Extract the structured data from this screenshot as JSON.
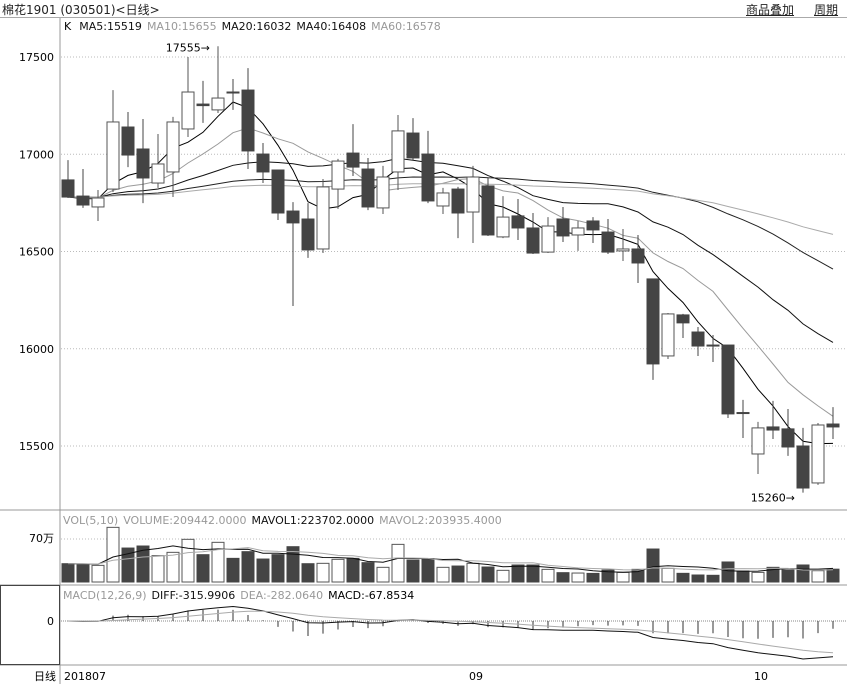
{
  "header": {
    "title": "棉花1901 (030501)<日线>",
    "menu_overlay": "商品叠加",
    "menu_period": "周期"
  },
  "chart_data": {
    "type": "candlestick",
    "price_panel": {
      "legend": [
        "K",
        "MA5:15519",
        "MA10:15655",
        "MA20:16032",
        "MA40:16408",
        "MA60:16578"
      ],
      "ma_periods": [
        5,
        10,
        20,
        40,
        60
      ],
      "ma_colors": [
        "#000000",
        "#9a9a9a",
        "#111111",
        "#222222",
        "#aaaaaa"
      ],
      "ytick_labels": [
        "17500",
        "17000",
        "16500",
        "16000",
        "15500"
      ],
      "yticks": [
        17500,
        17000,
        16500,
        16000,
        15500
      ],
      "ylim": [
        15100,
        17700
      ],
      "grid": true,
      "annotations": [
        {
          "text": "17555",
          "value": 17555,
          "candle": 11
        },
        {
          "text": "15260",
          "value": 15260,
          "candle": 50
        }
      ],
      "candles_ohlc": [
        [
          16868,
          16970,
          16775,
          16780
        ],
        [
          16785,
          16924,
          16724,
          16739
        ],
        [
          16729,
          16816,
          16657,
          16775
        ],
        [
          16821,
          17330,
          16806,
          17166
        ],
        [
          17140,
          17217,
          16934,
          16996
        ],
        [
          17027,
          17181,
          16749,
          16878
        ],
        [
          16852,
          17104,
          16827,
          16950
        ],
        [
          16909,
          17192,
          16780,
          17166
        ],
        [
          17130,
          17500,
          17089,
          17320
        ],
        [
          17258,
          17377,
          17161,
          17250
        ],
        [
          17228,
          17555,
          17212,
          17289
        ],
        [
          17320,
          17387,
          17228,
          17318
        ],
        [
          17330,
          17443,
          16924,
          17017
        ],
        [
          17001,
          17058,
          16852,
          16909
        ],
        [
          16919,
          16919,
          16662,
          16698
        ],
        [
          16708,
          16754,
          16220,
          16647
        ],
        [
          16667,
          16749,
          16467,
          16508
        ],
        [
          16513,
          16873,
          16492,
          16832
        ],
        [
          16821,
          16976,
          16719,
          16965
        ],
        [
          17006,
          17155,
          16888,
          16934
        ],
        [
          16924,
          16981,
          16713,
          16729
        ],
        [
          16724,
          16940,
          16693,
          16883
        ],
        [
          16909,
          17202,
          16816,
          17120
        ],
        [
          17109,
          17186,
          16970,
          16981
        ],
        [
          17001,
          17120,
          16749,
          16760
        ],
        [
          16734,
          16827,
          16693,
          16801
        ],
        [
          16821,
          16832,
          16569,
          16698
        ],
        [
          16703,
          16940,
          16544,
          16883
        ],
        [
          16837,
          16878,
          16580,
          16585
        ],
        [
          16575,
          16785,
          16569,
          16677
        ],
        [
          16683,
          16770,
          16559,
          16621
        ],
        [
          16621,
          16698,
          16487,
          16492
        ],
        [
          16497,
          16677,
          16492,
          16631
        ],
        [
          16667,
          16729,
          16549,
          16580
        ],
        [
          16585,
          16657,
          16503,
          16621
        ],
        [
          16657,
          16677,
          16544,
          16611
        ],
        [
          16600,
          16667,
          16487,
          16497
        ],
        [
          16503,
          16616,
          16451,
          16513
        ],
        [
          16513,
          16585,
          16338,
          16441
        ],
        [
          16359,
          16359,
          15840,
          15922
        ],
        [
          15963,
          16184,
          15947,
          16179
        ],
        [
          16174,
          16179,
          16055,
          16133
        ],
        [
          16086,
          16112,
          15963,
          16014
        ],
        [
          16019,
          16071,
          15932,
          16019
        ],
        [
          16019,
          16019,
          15644,
          15665
        ],
        [
          15672,
          15737,
          15541,
          15667
        ],
        [
          15459,
          15624,
          15356,
          15593
        ],
        [
          15598,
          15732,
          15536,
          15582
        ],
        [
          15588,
          15690,
          15449,
          15495
        ],
        [
          15500,
          15593,
          15260,
          15284
        ],
        [
          15310,
          15618,
          15300,
          15608
        ],
        [
          15613,
          15700,
          15536,
          15598
        ]
      ]
    },
    "volume_panel": {
      "legend": [
        "VOL(5,10)",
        "VOLUME:209442.0000",
        "MAVOL1:223702.0000",
        "MAVOL2:203935.4000"
      ],
      "ytick_label": "70万",
      "ytick": 70,
      "unit": "万",
      "values": [
        29.8,
        28.2,
        27.1,
        89,
        55.3,
        58.6,
        42.9,
        48.3,
        69.5,
        44.5,
        64.6,
        38.5,
        49.4,
        37.4,
        44.5,
        57.5,
        29.8,
        30.4,
        36.9,
        38.5,
        31.5,
        23.9,
        61.3,
        35.8,
        38,
        23.9,
        26,
        30.4,
        24.4,
        19,
        27.7,
        27.7,
        20.6,
        15.2,
        14.6,
        14,
        19.5,
        15.7,
        20.6,
        53.7,
        22.2,
        14.1,
        11.4,
        10.9,
        32.6,
        17.9,
        15.7,
        23.9,
        19.5,
        27.7,
        18.4,
        20.9
      ]
    },
    "macd_panel": {
      "legend": [
        "MACD(12,26,9)",
        "DIFF:-315.9906",
        "DEA:-282.0640",
        "MACD:-67.8534"
      ],
      "ytick_label": "0",
      "params": [
        12,
        26,
        9
      ]
    },
    "x_axis": {
      "corner_label": "日线",
      "labels": [
        {
          "text": "201807",
          "candle": 1
        },
        {
          "text": "09",
          "candle": 28
        },
        {
          "text": "10",
          "candle": 47
        }
      ]
    }
  }
}
